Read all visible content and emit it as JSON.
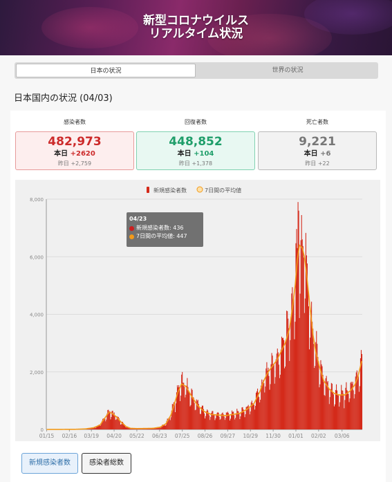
{
  "header": {
    "title_line1": "新型コロナウイルス",
    "title_line2": "リアルタイム状況"
  },
  "tabs": [
    {
      "label": "日本の状況",
      "active": true
    },
    {
      "label": "世界の状況",
      "active": false
    }
  ],
  "section_title": "日本国内の状況 (04/03)",
  "stats": [
    {
      "label": "感染者数",
      "total": "482,973",
      "today_label": "本日",
      "today_value": "+2620",
      "yesterday_label": "昨日",
      "yesterday_value": "+2,759",
      "color": "#cc2a2a"
    },
    {
      "label": "回復者数",
      "total": "448,852",
      "today_label": "本日",
      "today_value": "+104",
      "yesterday_label": "昨日",
      "yesterday_value": "+1,378",
      "color": "#1f9e6a"
    },
    {
      "label": "死亡者数",
      "total": "9,221",
      "today_label": "本日",
      "today_value": "+6",
      "yesterday_label": "昨日",
      "yesterday_value": "+22",
      "color": "#777777"
    }
  ],
  "tooltip": {
    "date": "04/23",
    "series1_label": "新規感染者数: 436",
    "series2_label": "7日間の平均値: 447",
    "series1_color": "#cc1f1f",
    "series2_color": "#f29a1a"
  },
  "buttons": [
    {
      "label": "新規感染者数",
      "active": true
    },
    {
      "label": "感染者総数",
      "active": false
    }
  ],
  "chart_data": {
    "type": "bar",
    "legend_position": "top",
    "series": [
      {
        "name": "新規感染者数",
        "color": "#d42a1a",
        "kind": "bar"
      },
      {
        "name": "7日間の平均値",
        "color": "#f29a1a",
        "kind": "line"
      }
    ],
    "ylim": [
      0,
      8000
    ],
    "y_ticks": [
      "0",
      "2,000",
      "4,000",
      "6,000",
      "8,000"
    ],
    "x_ticks": [
      "01/15",
      "02/16",
      "03/19",
      "04/20",
      "05/22",
      "06/23",
      "07/25",
      "08/26",
      "09/27",
      "10/29",
      "11/30",
      "01/01",
      "02/02",
      "03/06"
    ],
    "x_tick_index": [
      0,
      32,
      63,
      95,
      127,
      159,
      191,
      223,
      255,
      287,
      319,
      351,
      383,
      416
    ],
    "day_count": 445,
    "avg_anchors": [
      [
        0,
        0
      ],
      [
        40,
        5
      ],
      [
        55,
        20
      ],
      [
        66,
        60
      ],
      [
        75,
        150
      ],
      [
        82,
        400
      ],
      [
        88,
        600
      ],
      [
        92,
        560
      ],
      [
        98,
        440
      ],
      [
        105,
        250
      ],
      [
        112,
        100
      ],
      [
        118,
        40
      ],
      [
        128,
        30
      ],
      [
        150,
        40
      ],
      [
        160,
        80
      ],
      [
        168,
        200
      ],
      [
        175,
        500
      ],
      [
        180,
        900
      ],
      [
        185,
        1300
      ],
      [
        190,
        1580
      ],
      [
        196,
        1500
      ],
      [
        203,
        1200
      ],
      [
        212,
        850
      ],
      [
        222,
        620
      ],
      [
        232,
        520
      ],
      [
        242,
        500
      ],
      [
        252,
        480
      ],
      [
        262,
        520
      ],
      [
        272,
        560
      ],
      [
        282,
        700
      ],
      [
        292,
        900
      ],
      [
        300,
        1300
      ],
      [
        306,
        1700
      ],
      [
        312,
        2000
      ],
      [
        318,
        2200
      ],
      [
        324,
        2400
      ],
      [
        330,
        2700
      ],
      [
        336,
        3000
      ],
      [
        342,
        3500
      ],
      [
        346,
        4200
      ],
      [
        350,
        5000
      ],
      [
        353,
        5900
      ],
      [
        356,
        6400
      ],
      [
        360,
        6300
      ],
      [
        363,
        6000
      ],
      [
        366,
        5400
      ],
      [
        369,
        4700
      ],
      [
        372,
        4000
      ],
      [
        375,
        3300
      ],
      [
        379,
        2700
      ],
      [
        384,
        2200
      ],
      [
        390,
        1700
      ],
      [
        398,
        1400
      ],
      [
        405,
        1250
      ],
      [
        412,
        1200
      ],
      [
        420,
        1200
      ],
      [
        428,
        1350
      ],
      [
        434,
        1550
      ],
      [
        438,
        1800
      ],
      [
        441,
        2100
      ],
      [
        443,
        2300
      ],
      [
        445,
        2450
      ]
    ]
  }
}
